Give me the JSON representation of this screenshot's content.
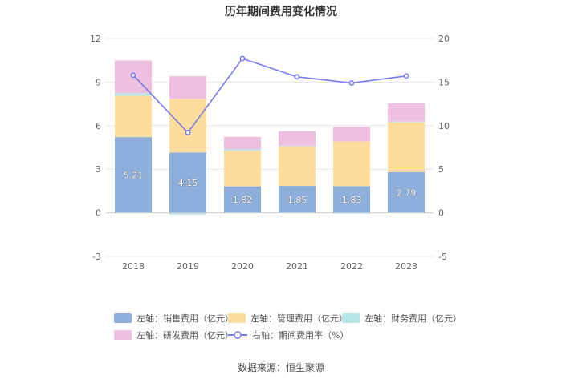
{
  "chart_data": {
    "type": "bar",
    "title": "历年期间费用变化情况",
    "categories": [
      "2018",
      "2019",
      "2020",
      "2021",
      "2022",
      "2023"
    ],
    "left_axis": {
      "ylim": [
        -3,
        12
      ],
      "ticks": [
        "-3",
        "0",
        "3",
        "6",
        "9",
        "12"
      ]
    },
    "right_axis": {
      "ylim": [
        -5,
        20
      ],
      "ticks": [
        "-5",
        "0",
        "5",
        "10",
        "15",
        "20"
      ]
    },
    "series": [
      {
        "name": "左轴：销售费用（亿元）",
        "type": "bar",
        "stack": true,
        "axis": "left",
        "color": "#8EAFDC",
        "values": [
          5.21,
          4.15,
          1.82,
          1.85,
          1.83,
          2.79
        ],
        "labels": [
          "5.21",
          "4.15",
          "1.82",
          "1.85",
          "1.83",
          "2.79"
        ]
      },
      {
        "name": "左轴：管理费用（亿元）",
        "type": "bar",
        "stack": true,
        "axis": "left",
        "color": "#FEDC9C",
        "values": [
          2.85,
          3.7,
          2.45,
          2.72,
          3.08,
          3.47
        ]
      },
      {
        "name": "左轴：财务费用（亿元）",
        "type": "bar",
        "stack": true,
        "axis": "left",
        "color": "#B7E6E9",
        "values": [
          0.18,
          -0.12,
          0.1,
          0.05,
          -0.05,
          0.02
        ]
      },
      {
        "name": "左轴：研发费用（亿元）",
        "type": "bar",
        "stack": true,
        "axis": "left",
        "color": "#EEC0DF",
        "values": [
          2.25,
          1.55,
          0.85,
          1.0,
          1.0,
          1.27
        ]
      },
      {
        "name": "右轴：期间费用率（%）",
        "type": "line",
        "axis": "right",
        "color": "#7479EE",
        "values": [
          15.8,
          9.2,
          17.7,
          15.6,
          14.9,
          15.7
        ]
      }
    ]
  },
  "source": "数据来源：恒生聚源"
}
